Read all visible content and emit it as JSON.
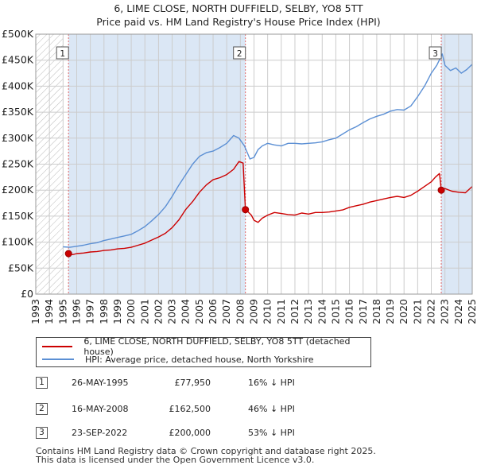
{
  "chart_data": {
    "type": "line",
    "title": "6, LIME CLOSE, NORTH DUFFIELD, SELBY, YO8 5TT",
    "subtitle": "Price paid vs. HM Land Registry's House Price Index (HPI)",
    "xlabel": "",
    "ylabel": "",
    "xlim": [
      1993,
      2025
    ],
    "ylim": [
      0,
      500000
    ],
    "y_ticks": [
      0,
      50000,
      100000,
      150000,
      200000,
      250000,
      300000,
      350000,
      400000,
      450000,
      500000
    ],
    "y_tick_labels": [
      "£0",
      "£50K",
      "£100K",
      "£150K",
      "£200K",
      "£250K",
      "£300K",
      "£350K",
      "£400K",
      "£450K",
      "£500K"
    ],
    "x_ticks": [
      1993,
      1994,
      1995,
      1996,
      1997,
      1998,
      1999,
      2000,
      2001,
      2002,
      2003,
      2004,
      2005,
      2006,
      2007,
      2008,
      2009,
      2010,
      2011,
      2012,
      2013,
      2014,
      2015,
      2016,
      2017,
      2018,
      2019,
      2020,
      2021,
      2022,
      2023,
      2024,
      2025
    ],
    "grid": true,
    "legend_position": "below",
    "hatched_ranges": [
      [
        1993,
        1995.0
      ],
      [
        2025.0,
        2025.0
      ]
    ],
    "shaded_ranges": [
      [
        1995.4,
        2008.37
      ],
      [
        2022.73,
        2025
      ]
    ],
    "colors": {
      "property": "#cc0000",
      "hpi": "#5b8fd4",
      "shade": "#dbe7f5",
      "grid": "#cccccc"
    },
    "series": [
      {
        "name": "6, LIME CLOSE, NORTH DUFFIELD, SELBY, YO8 5TT (detached house)",
        "color": "#cc0000",
        "x": [
          1995.4,
          1995.7,
          1996.0,
          1996.5,
          1997.0,
          1997.5,
          1998.0,
          1998.5,
          1999.0,
          1999.5,
          2000.0,
          2000.5,
          2001.0,
          2001.5,
          2002.0,
          2002.5,
          2003.0,
          2003.5,
          2004.0,
          2004.5,
          2005.0,
          2005.5,
          2006.0,
          2006.5,
          2007.0,
          2007.5,
          2007.9,
          2008.2,
          2008.37,
          2008.5,
          2008.8,
          2009.0,
          2009.3,
          2009.6,
          2010.0,
          2010.5,
          2011.0,
          2011.5,
          2012.0,
          2012.5,
          2013.0,
          2013.5,
          2014.0,
          2014.5,
          2015.0,
          2015.5,
          2016.0,
          2016.5,
          2017.0,
          2017.5,
          2018.0,
          2018.5,
          2019.0,
          2019.5,
          2020.0,
          2020.5,
          2021.0,
          2021.5,
          2022.0,
          2022.3,
          2022.6,
          2022.73,
          2023.0,
          2023.5,
          2024.0,
          2024.5,
          2025.0
        ],
        "values": [
          77950,
          76000,
          78000,
          79000,
          81000,
          82000,
          84000,
          85000,
          87000,
          88000,
          90000,
          94000,
          98000,
          104000,
          110000,
          117000,
          128000,
          143000,
          163000,
          178000,
          196000,
          210000,
          220000,
          224000,
          230000,
          240000,
          255000,
          252000,
          162500,
          160000,
          152000,
          142000,
          138000,
          146000,
          152000,
          157000,
          155000,
          153000,
          152000,
          156000,
          154000,
          157000,
          157000,
          158000,
          160000,
          162000,
          167000,
          170000,
          173000,
          177000,
          180000,
          183000,
          186000,
          188000,
          186000,
          190000,
          198000,
          207000,
          216000,
          225000,
          232000,
          200000,
          203000,
          198000,
          196000,
          195000,
          207000
        ]
      },
      {
        "name": "HPI: Average price, detached house, North Yorkshire",
        "color": "#5b8fd4",
        "x": [
          1995.0,
          1995.5,
          1996.0,
          1996.5,
          1997.0,
          1997.5,
          1998.0,
          1998.5,
          1999.0,
          1999.5,
          2000.0,
          2000.5,
          2001.0,
          2001.5,
          2002.0,
          2002.5,
          2003.0,
          2003.5,
          2004.0,
          2004.5,
          2005.0,
          2005.5,
          2006.0,
          2006.5,
          2007.0,
          2007.5,
          2007.9,
          2008.3,
          2008.7,
          2009.0,
          2009.3,
          2009.6,
          2010.0,
          2010.5,
          2011.0,
          2011.5,
          2012.0,
          2012.5,
          2013.0,
          2013.5,
          2014.0,
          2014.5,
          2015.0,
          2015.5,
          2016.0,
          2016.5,
          2017.0,
          2017.5,
          2018.0,
          2018.5,
          2019.0,
          2019.5,
          2020.0,
          2020.5,
          2021.0,
          2021.5,
          2022.0,
          2022.4,
          2022.8,
          2023.0,
          2023.4,
          2023.8,
          2024.2,
          2024.6,
          2025.0
        ],
        "values": [
          91000,
          90000,
          92000,
          94000,
          97000,
          99000,
          103000,
          106000,
          109000,
          112000,
          115000,
          122000,
          130000,
          141000,
          153000,
          168000,
          188000,
          210000,
          230000,
          250000,
          265000,
          272000,
          275000,
          282000,
          290000,
          305000,
          300000,
          285000,
          260000,
          263000,
          278000,
          285000,
          290000,
          287000,
          285000,
          290000,
          290000,
          289000,
          290000,
          291000,
          293000,
          297000,
          300000,
          308000,
          316000,
          322000,
          330000,
          337000,
          342000,
          346000,
          352000,
          355000,
          354000,
          362000,
          380000,
          400000,
          425000,
          440000,
          462000,
          440000,
          430000,
          435000,
          425000,
          432000,
          442000
        ]
      }
    ],
    "sales": [
      {
        "label": "1",
        "x": 1995.4,
        "price": 77950
      },
      {
        "label": "2",
        "x": 2008.37,
        "price": 162500
      },
      {
        "label": "3",
        "x": 2022.73,
        "price": 200000
      }
    ]
  },
  "legend": {
    "property_label": "6, LIME CLOSE, NORTH DUFFIELD, SELBY, YO8 5TT (detached house)",
    "hpi_label": "HPI: Average price, detached house, North Yorkshire"
  },
  "sales_table": [
    {
      "num": "1",
      "date": "26-MAY-1995",
      "price": "£77,950",
      "hpi": "16% ↓ HPI"
    },
    {
      "num": "2",
      "date": "16-MAY-2008",
      "price": "£162,500",
      "hpi": "46% ↓ HPI"
    },
    {
      "num": "3",
      "date": "23-SEP-2022",
      "price": "£200,000",
      "hpi": "53% ↓ HPI"
    }
  ],
  "footer": {
    "line1": "Contains HM Land Registry data © Crown copyright and database right 2025.",
    "line2": "This data is licensed under the Open Government Licence v3.0."
  }
}
